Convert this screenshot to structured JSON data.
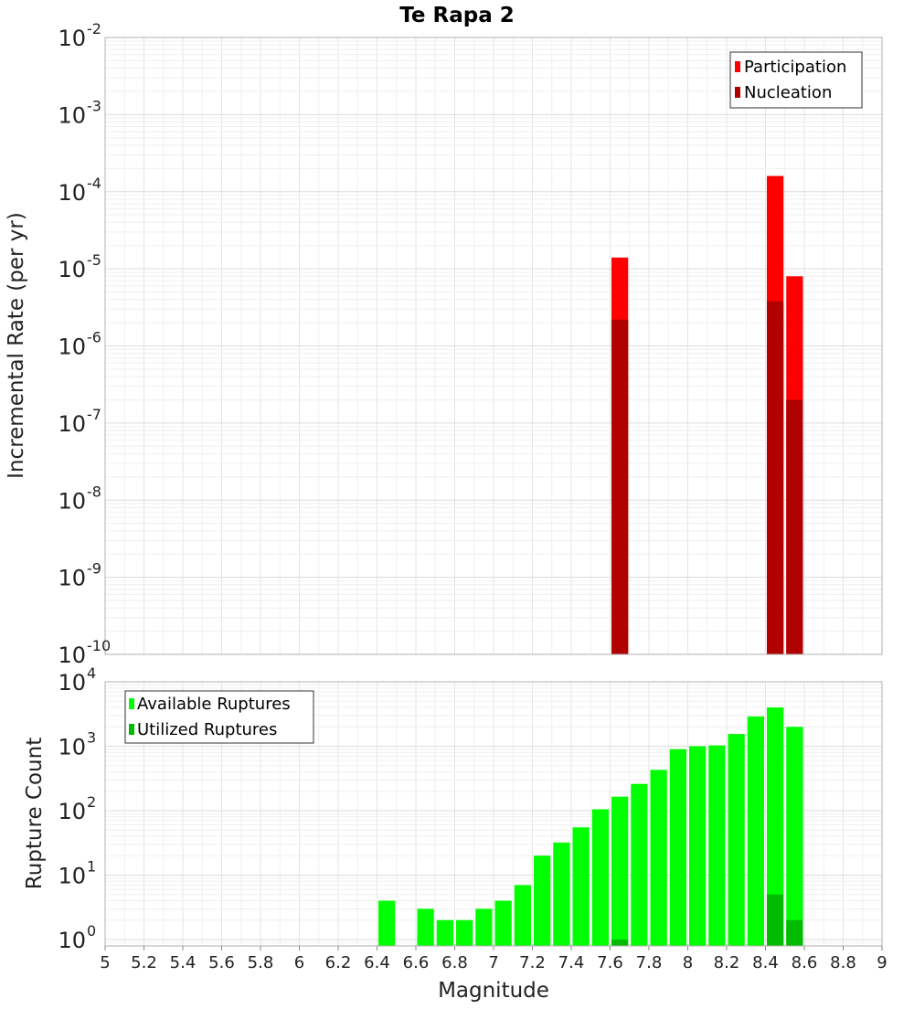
{
  "chart_data": [
    {
      "type": "bar",
      "title": "Te Rapa 2",
      "xlabel": "Magnitude",
      "ylabel": "Incremental Rate (per yr)",
      "yscale": "log",
      "ylim_exponents": [
        -10,
        -2
      ],
      "xlim": [
        5,
        9
      ],
      "bin_width": 0.1,
      "y_tick_base": "10",
      "y_tick_exponents": [
        "-10",
        "-9",
        "-8",
        "-7",
        "-6",
        "-5",
        "-4",
        "-3",
        "-2"
      ],
      "legend": {
        "position": "top-right",
        "entries": [
          "Participation",
          "Nucleation"
        ]
      },
      "series": [
        {
          "name": "Participation",
          "color": "#ff0000",
          "x": [
            7.65,
            8.45,
            8.55
          ],
          "values": [
            1.4e-05,
            0.00016,
            8e-06
          ]
        },
        {
          "name": "Nucleation",
          "color": "#b00000",
          "x": [
            7.65,
            8.45,
            8.55
          ],
          "values": [
            2.2e-06,
            3.8e-06,
            2e-07
          ]
        }
      ]
    },
    {
      "type": "bar",
      "xlabel": "Magnitude",
      "ylabel": "Rupture Count",
      "yscale": "log",
      "ylim_exponents": [
        -0.1,
        4
      ],
      "xlim": [
        5,
        9
      ],
      "bin_width": 0.1,
      "y_tick_base": "10",
      "y_tick_exponents": [
        "0",
        "1",
        "2",
        "3",
        "4"
      ],
      "x_tick_labels": [
        "5",
        "5.2",
        "5.4",
        "5.6",
        "5.8",
        "6",
        "6.2",
        "6.4",
        "6.6",
        "6.8",
        "7",
        "7.2",
        "7.4",
        "7.6",
        "7.8",
        "8",
        "8.2",
        "8.4",
        "8.6",
        "8.8",
        "9"
      ],
      "legend": {
        "position": "top-left",
        "entries": [
          "Available Ruptures",
          "Utilized Ruptures"
        ]
      },
      "series": [
        {
          "name": "Available Ruptures",
          "color": "#00ff00",
          "x": [
            6.45,
            6.65,
            6.75,
            6.85,
            6.95,
            7.05,
            7.15,
            7.25,
            7.35,
            7.45,
            7.55,
            7.65,
            7.75,
            7.85,
            7.95,
            8.05,
            8.15,
            8.25,
            8.35,
            8.45,
            8.55
          ],
          "values": [
            4,
            3,
            2,
            2,
            3,
            4,
            7,
            20,
            32,
            55,
            105,
            165,
            260,
            430,
            900,
            1000,
            1030,
            1550,
            2900,
            4000,
            2000
          ]
        },
        {
          "name": "Utilized Ruptures",
          "color": "#00bb00",
          "x": [
            7.65,
            8.45,
            8.55
          ],
          "values": [
            1,
            5,
            2
          ]
        }
      ]
    }
  ]
}
